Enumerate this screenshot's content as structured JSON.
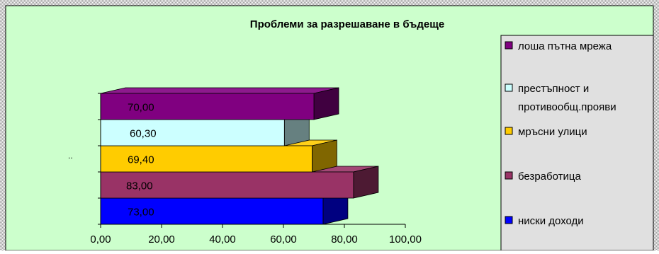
{
  "chart_data": {
    "type": "bar",
    "orientation": "horizontal",
    "style": "3d-stacked-clustered",
    "title": "Проблеми за разрешаване в бъдеще",
    "y_axis_label_visible": "..",
    "categories": [
      "ниски доходи",
      "безработица",
      "мръсни улици",
      "престъпност и противообщ.прояви",
      "лоша пътна мрежа"
    ],
    "values": [
      73.0,
      83.0,
      69.4,
      60.3,
      70.0
    ],
    "value_labels": [
      "73,00",
      "83,00",
      "69,40",
      "60,30",
      "70,00"
    ],
    "colors": [
      "#0000ff",
      "#993366",
      "#ffcc00",
      "#ccffff",
      "#800080"
    ],
    "xlim": [
      0,
      100
    ],
    "x_ticks": [
      0,
      20,
      40,
      60,
      80,
      100
    ],
    "x_tick_labels": [
      "0,00",
      "20,00",
      "40,00",
      "60,00",
      "80,00",
      "100,00"
    ],
    "legend": {
      "placement": "right",
      "entries": [
        {
          "label": "лоша пътна мрежа",
          "color": "#800080"
        },
        {
          "label": "престъпност и противообщ.прояви",
          "color": "#ccffff"
        },
        {
          "label": "мръсни улици",
          "color": "#ffcc00"
        },
        {
          "label": "безработица",
          "color": "#993366"
        },
        {
          "label": "ниски доходи",
          "color": "#0000ff"
        }
      ]
    },
    "background": "#ccffcc",
    "legend_background": "#e0e0e0",
    "grid": false
  }
}
